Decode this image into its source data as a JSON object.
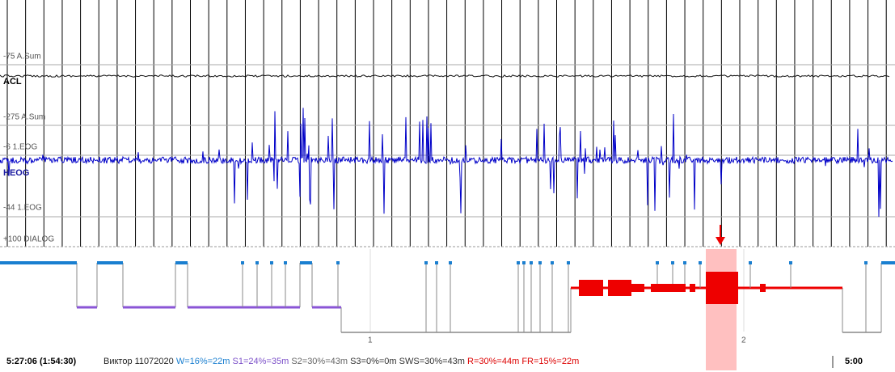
{
  "channels": {
    "acl_scale": "-75 A.Sum",
    "acl_name": "ACL",
    "heog_scale_top": "-275 A.Sum",
    "heog_ref": "-6 1.EOG",
    "heog_name": "HEOG",
    "heog_scale_bottom": "-44 1.EOG",
    "dialog": "+100 DIALOG"
  },
  "hypnogram": {
    "cycle_labels": [
      "1",
      "2"
    ]
  },
  "status": {
    "time": "5:27:06 (1:54:30)",
    "subject": "Виктор 11072020",
    "stats": [
      "W=16%=22m",
      "S1=24%=35m",
      "S2=30%=43m",
      "S3=0%=0m",
      "SWS=30%=43m",
      "R=30%=44m",
      "FR=15%=22m"
    ],
    "end_time": "5:00"
  }
}
